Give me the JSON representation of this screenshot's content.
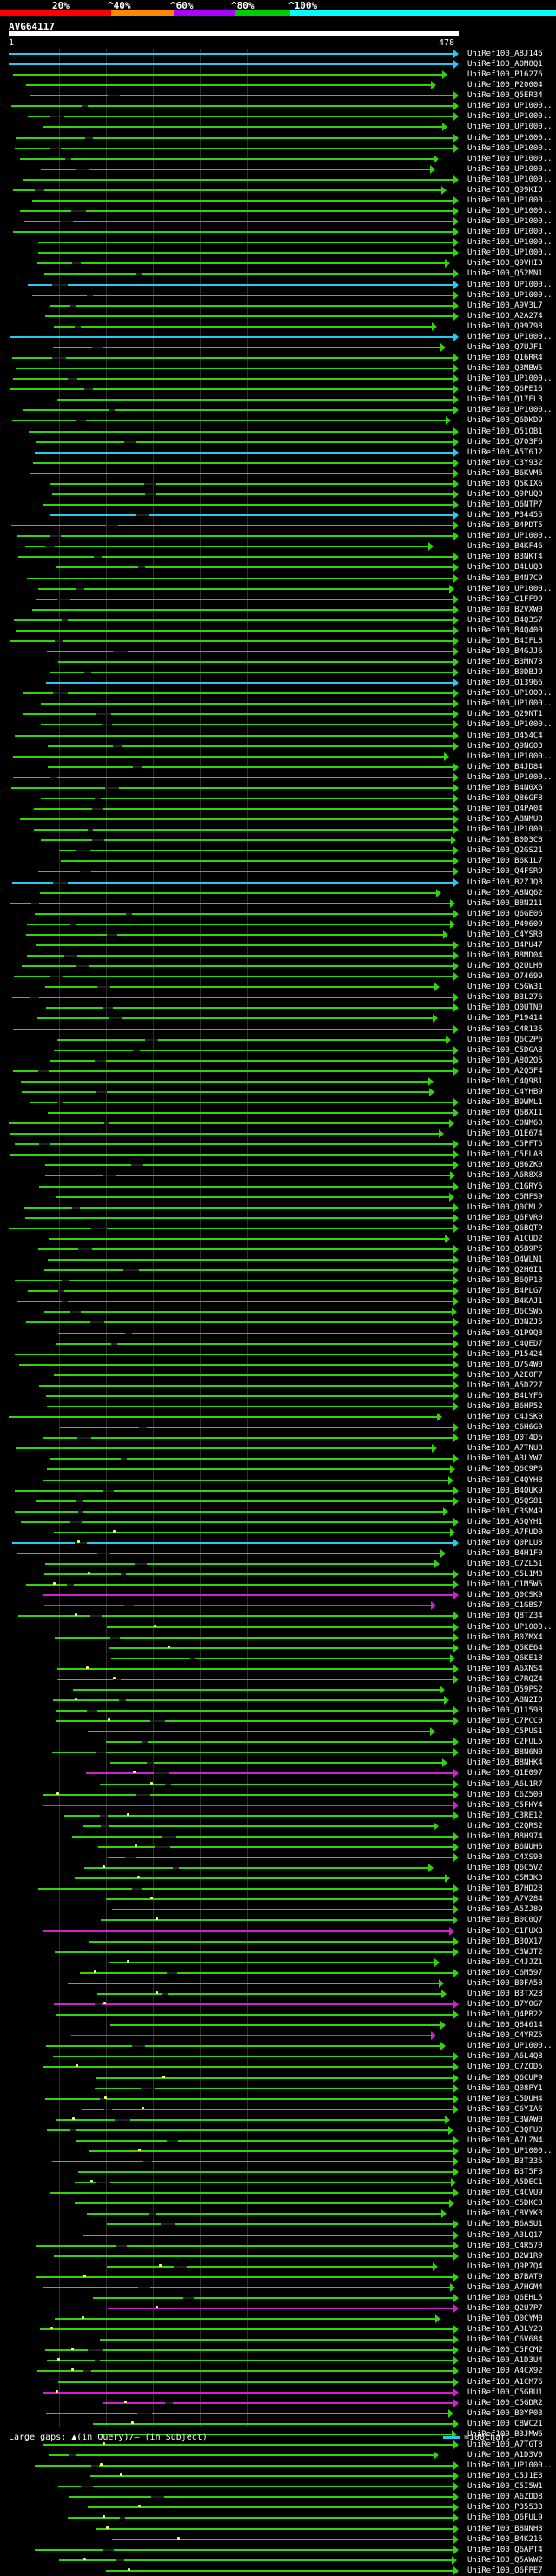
{
  "scale": {
    "labels": [
      "20%",
      "^40%",
      "^60%",
      "^80%",
      "^100%"
    ],
    "colors": [
      "#ff0000",
      "#ff8800",
      "#aa00ff",
      "#00cc00",
      "#00ffff"
    ]
  },
  "query": {
    "name": "AVG64117",
    "start": "1",
    "end": "478"
  },
  "colors": {
    "green": "#2fd40a",
    "cyan": "#28c8f0",
    "magenta": "#d020d0"
  },
  "hits": [
    {
      "label": "UniRef100_A8J146",
      "color": "cyan"
    },
    {
      "label": "UniRef100_A0M8Q1",
      "color": "cyan"
    },
    {
      "label": "UniRef100_P16276",
      "color": "green"
    },
    {
      "label": "UniRef100_P20004",
      "color": "green"
    },
    {
      "label": "UniRef100_Q5ER34",
      "color": "green"
    },
    {
      "label": "UniRef100_UP1000..",
      "color": "green"
    },
    {
      "label": "UniRef100_UP1000..",
      "color": "green"
    },
    {
      "label": "UniRef100_UP1000..",
      "color": "green"
    },
    {
      "label": "UniRef100_UP1000..",
      "color": "green"
    },
    {
      "label": "UniRef100_UP1000..",
      "color": "green"
    },
    {
      "label": "UniRef100_UP1000..",
      "color": "green"
    },
    {
      "label": "UniRef100_UP1000..",
      "color": "green"
    },
    {
      "label": "UniRef100_UP1000..",
      "color": "green"
    },
    {
      "label": "UniRef100_Q99KI0",
      "color": "green"
    },
    {
      "label": "UniRef100_UP1000..",
      "color": "green"
    },
    {
      "label": "UniRef100_UP1000..",
      "color": "green"
    },
    {
      "label": "UniRef100_UP1000..",
      "color": "green"
    },
    {
      "label": "UniRef100_UP1000..",
      "color": "green"
    },
    {
      "label": "UniRef100_UP1000..",
      "color": "green"
    },
    {
      "label": "UniRef100_UP1000..",
      "color": "green"
    },
    {
      "label": "UniRef100_Q9VHI3",
      "color": "green"
    },
    {
      "label": "UniRef100_Q52MN1",
      "color": "green"
    },
    {
      "label": "UniRef100_UP1000..",
      "color": "cyan"
    },
    {
      "label": "UniRef100_UP1000..",
      "color": "green"
    },
    {
      "label": "UniRef100_A9V3L7",
      "color": "green"
    },
    {
      "label": "UniRef100_A2A274",
      "color": "green"
    },
    {
      "label": "UniRef100_Q99798",
      "color": "green"
    },
    {
      "label": "UniRef100_UP1000..",
      "color": "cyan"
    },
    {
      "label": "UniRef100_Q7UJF1",
      "color": "green"
    },
    {
      "label": "UniRef100_Q16RR4",
      "color": "green"
    },
    {
      "label": "UniRef100_Q3MBW5",
      "color": "green"
    },
    {
      "label": "UniRef100_UP1000..",
      "color": "green"
    },
    {
      "label": "UniRef100_Q6PE16",
      "color": "green"
    },
    {
      "label": "UniRef100_Q17EL3",
      "color": "green"
    },
    {
      "label": "UniRef100_UP1000..",
      "color": "green"
    },
    {
      "label": "UniRef100_Q6DKD9",
      "color": "green"
    },
    {
      "label": "UniRef100_Q51QB1",
      "color": "green"
    },
    {
      "label": "UniRef100_Q703F6",
      "color": "green"
    },
    {
      "label": "UniRef100_A5T6J2",
      "color": "cyan"
    },
    {
      "label": "UniRef100_C3Y932",
      "color": "green"
    },
    {
      "label": "UniRef100_B6KVM6",
      "color": "green"
    },
    {
      "label": "UniRef100_Q5KIX6",
      "color": "green"
    },
    {
      "label": "UniRef100_Q9PUQ0",
      "color": "green"
    },
    {
      "label": "UniRef100_Q6NTP7",
      "color": "green"
    },
    {
      "label": "UniRef100_P34455",
      "color": "cyan"
    },
    {
      "label": "UniRef100_B4PDT5",
      "color": "green"
    },
    {
      "label": "UniRef100_UP1000..",
      "color": "green"
    },
    {
      "label": "UniRef100_B4KF46",
      "color": "green"
    },
    {
      "label": "UniRef100_B3NKT4",
      "color": "green"
    },
    {
      "label": "UniRef100_B4LUQ3",
      "color": "green"
    },
    {
      "label": "UniRef100_B4N7C9",
      "color": "green"
    },
    {
      "label": "UniRef100_UP1000..",
      "color": "green"
    },
    {
      "label": "UniRef100_C1FF99",
      "color": "green"
    },
    {
      "label": "UniRef100_B2VXW0",
      "color": "green"
    },
    {
      "label": "UniRef100_B4Q3S7",
      "color": "green"
    },
    {
      "label": "UniRef100_B4Q400",
      "color": "green"
    },
    {
      "label": "UniRef100_B4IFL8",
      "color": "green"
    },
    {
      "label": "UniRef100_B4GJJ6",
      "color": "green"
    },
    {
      "label": "UniRef100_B3MN73",
      "color": "green"
    },
    {
      "label": "UniRef100_B0DBJ9",
      "color": "green"
    },
    {
      "label": "UniRef100_Q13966",
      "color": "cyan"
    },
    {
      "label": "UniRef100_UP1000..",
      "color": "green"
    },
    {
      "label": "UniRef100_UP1000..",
      "color": "green"
    },
    {
      "label": "UniRef100_Q29NT1",
      "color": "green"
    },
    {
      "label": "UniRef100_UP1000..",
      "color": "green"
    },
    {
      "label": "UniRef100_Q454C4",
      "color": "green"
    },
    {
      "label": "UniRef100_Q9NG03",
      "color": "green"
    },
    {
      "label": "UniRef100_UP1000..",
      "color": "green"
    },
    {
      "label": "UniRef100_B4JD84",
      "color": "green"
    },
    {
      "label": "UniRef100_UP1000..",
      "color": "green"
    },
    {
      "label": "UniRef100_B4N0X6",
      "color": "green"
    },
    {
      "label": "UniRef100_Q86GF8",
      "color": "green"
    },
    {
      "label": "UniRef100_Q4PA04",
      "color": "green"
    },
    {
      "label": "UniRef100_A8NMU8",
      "color": "green"
    },
    {
      "label": "UniRef100_UP1000..",
      "color": "green"
    },
    {
      "label": "UniRef100_B0D3C8",
      "color": "green"
    },
    {
      "label": "UniRef100_Q2GS21",
      "color": "green"
    },
    {
      "label": "UniRef100_B6K1L7",
      "color": "green"
    },
    {
      "label": "UniRef100_Q4FSR9",
      "color": "green"
    },
    {
      "label": "UniRef100_B2ZJQ3",
      "color": "cyan"
    },
    {
      "label": "UniRef100_A8NQ62",
      "color": "green"
    },
    {
      "label": "UniRef100_B8N211",
      "color": "green"
    },
    {
      "label": "UniRef100_Q6GE06",
      "color": "green"
    },
    {
      "label": "UniRef100_P49609",
      "color": "green"
    },
    {
      "label": "UniRef100_C4YSR8",
      "color": "green"
    },
    {
      "label": "UniRef100_B4PU47",
      "color": "green"
    },
    {
      "label": "UniRef100_B8MD04",
      "color": "green"
    },
    {
      "label": "UniRef100_Q2ULH0",
      "color": "green"
    },
    {
      "label": "UniRef100_O74699",
      "color": "green"
    },
    {
      "label": "UniRef100_C5GW31",
      "color": "green"
    },
    {
      "label": "UniRef100_B3L276",
      "color": "green"
    },
    {
      "label": "UniRef100_Q0UTN0",
      "color": "green"
    },
    {
      "label": "UniRef100_P19414",
      "color": "green"
    },
    {
      "label": "UniRef100_C4R135",
      "color": "green"
    },
    {
      "label": "UniRef100_Q6C2P6",
      "color": "green"
    },
    {
      "label": "UniRef100_C5DGA3",
      "color": "green"
    },
    {
      "label": "UniRef100_A8Q2Q5",
      "color": "green"
    },
    {
      "label": "UniRef100_A2Q5F4",
      "color": "green"
    },
    {
      "label": "UniRef100_C4Q981",
      "color": "green"
    },
    {
      "label": "UniRef100_C4YHB9",
      "color": "green"
    },
    {
      "label": "UniRef100_B9WML1",
      "color": "green"
    },
    {
      "label": "UniRef100_Q6BXI1",
      "color": "green"
    },
    {
      "label": "UniRef100_C0NM60",
      "color": "green"
    },
    {
      "label": "UniRef100_Q1E674",
      "color": "green"
    },
    {
      "label": "UniRef100_C5PFT5",
      "color": "green"
    },
    {
      "label": "UniRef100_C5FLA8",
      "color": "green"
    },
    {
      "label": "UniRef100_Q86ZK0",
      "color": "green"
    },
    {
      "label": "UniRef100_A6R8X8",
      "color": "green"
    },
    {
      "label": "UniRef100_C1GRY5",
      "color": "green"
    },
    {
      "label": "UniRef100_C5MFS9",
      "color": "green"
    },
    {
      "label": "UniRef100_Q0CML2",
      "color": "green"
    },
    {
      "label": "UniRef100_Q6FVR0",
      "color": "green"
    },
    {
      "label": "UniRef100_Q6BQT9",
      "color": "green"
    },
    {
      "label": "UniRef100_A1CUD2",
      "color": "green"
    },
    {
      "label": "UniRef100_Q5B9P5",
      "color": "green"
    },
    {
      "label": "UniRef100_Q4WLN1",
      "color": "green"
    },
    {
      "label": "UniRef100_Q2H0I1",
      "color": "green"
    },
    {
      "label": "UniRef100_B6QP13",
      "color": "green"
    },
    {
      "label": "UniRef100_B4PLG7",
      "color": "green"
    },
    {
      "label": "UniRef100_B4KAJ1",
      "color": "green"
    },
    {
      "label": "UniRef100_Q6CSW5",
      "color": "green"
    },
    {
      "label": "UniRef100_B3NZJ5",
      "color": "green"
    },
    {
      "label": "UniRef100_Q1P9Q3",
      "color": "green"
    },
    {
      "label": "UniRef100_C4QED7",
      "color": "green"
    },
    {
      "label": "UniRef100_P15424",
      "color": "green"
    },
    {
      "label": "UniRef100_Q7S4W0",
      "color": "green"
    },
    {
      "label": "UniRef100_A2E0F7",
      "color": "green"
    },
    {
      "label": "UniRef100_A5DZ27",
      "color": "green"
    },
    {
      "label": "UniRef100_B4LYF6",
      "color": "green"
    },
    {
      "label": "UniRef100_B6HP52",
      "color": "green"
    },
    {
      "label": "UniRef100_C4JSK0",
      "color": "green"
    },
    {
      "label": "UniRef100_C6H6G0",
      "color": "green"
    },
    {
      "label": "UniRef100_Q0T4D6",
      "color": "green"
    },
    {
      "label": "UniRef100_A7TNU8",
      "color": "green"
    },
    {
      "label": "UniRef100_A3LYW7",
      "color": "green"
    },
    {
      "label": "UniRef100_Q6C9P6",
      "color": "green"
    },
    {
      "label": "UniRef100_C4QYH8",
      "color": "green"
    },
    {
      "label": "UniRef100_B4QUK9",
      "color": "green"
    },
    {
      "label": "UniRef100_Q5QS81",
      "color": "green"
    },
    {
      "label": "UniRef100_C3SM49",
      "color": "green"
    },
    {
      "label": "UniRef100_A5QYH1",
      "color": "green"
    },
    {
      "label": "UniRef100_A7FUD0",
      "color": "green"
    },
    {
      "label": "UniRef100_Q0PLU3",
      "color": "cyan"
    },
    {
      "label": "UniRef100_B4H1F0",
      "color": "green"
    },
    {
      "label": "UniRef100_C7ZL51",
      "color": "green"
    },
    {
      "label": "UniRef100_C5L1M3",
      "color": "green"
    },
    {
      "label": "UniRef100_C1M5W5",
      "color": "green"
    },
    {
      "label": "UniRef100_Q0CSK9",
      "color": "magenta"
    },
    {
      "label": "UniRef100_C1GBS7",
      "color": "magenta"
    },
    {
      "label": "UniRef100_Q8TZ34",
      "color": "green"
    },
    {
      "label": "UniRef100_UP1000..",
      "color": "green"
    },
    {
      "label": "UniRef100_B0ZMX4",
      "color": "green"
    },
    {
      "label": "UniRef100_Q5KE64",
      "color": "green"
    },
    {
      "label": "UniRef100_Q6KE18",
      "color": "green"
    },
    {
      "label": "UniRef100_A6XNS4",
      "color": "green"
    },
    {
      "label": "UniRef100_C7RQZ4",
      "color": "green"
    },
    {
      "label": "UniRef100_Q59PS2",
      "color": "green"
    },
    {
      "label": "UniRef100_A8N2I0",
      "color": "green"
    },
    {
      "label": "UniRef100_Q11598",
      "color": "green"
    },
    {
      "label": "UniRef100_C7PCC0",
      "color": "green"
    },
    {
      "label": "UniRef100_C5PUS1",
      "color": "green"
    },
    {
      "label": "UniRef100_C2FUL5",
      "color": "green"
    },
    {
      "label": "UniRef100_B8N6N0",
      "color": "green"
    },
    {
      "label": "UniRef100_B8NHK4",
      "color": "green"
    },
    {
      "label": "UniRef100_Q1E097",
      "color": "magenta"
    },
    {
      "label": "UniRef100_A6L1R7",
      "color": "green"
    },
    {
      "label": "UniRef100_C6Z500",
      "color": "green"
    },
    {
      "label": "UniRef100_C5FHY4",
      "color": "magenta"
    },
    {
      "label": "UniRef100_C3RE12",
      "color": "green"
    },
    {
      "label": "UniRef100_C2QRS2",
      "color": "green"
    },
    {
      "label": "UniRef100_B8H974",
      "color": "green"
    },
    {
      "label": "UniRef100_B6NUH6",
      "color": "green"
    },
    {
      "label": "UniRef100_C4XS93",
      "color": "green"
    },
    {
      "label": "UniRef100_Q6C5V2",
      "color": "green"
    },
    {
      "label": "UniRef100_C5M3K3",
      "color": "green"
    },
    {
      "label": "UniRef100_B7HD28",
      "color": "green"
    },
    {
      "label": "UniRef100_A7V284",
      "color": "green"
    },
    {
      "label": "UniRef100_A5ZJ89",
      "color": "green"
    },
    {
      "label": "UniRef100_B0C0Q7",
      "color": "green"
    },
    {
      "label": "UniRef100_C1FUX3",
      "color": "magenta"
    },
    {
      "label": "UniRef100_B3QX17",
      "color": "green"
    },
    {
      "label": "UniRef100_C3WJT2",
      "color": "green"
    },
    {
      "label": "UniRef100_C4JJZ1",
      "color": "green"
    },
    {
      "label": "UniRef100_C6M597",
      "color": "green"
    },
    {
      "label": "UniRef100_B0FA58",
      "color": "green"
    },
    {
      "label": "UniRef100_B3TX28",
      "color": "green"
    },
    {
      "label": "UniRef100_B7Y0G7",
      "color": "magenta"
    },
    {
      "label": "UniRef100_Q4PB22",
      "color": "green"
    },
    {
      "label": "UniRef100_Q84614",
      "color": "green"
    },
    {
      "label": "UniRef100_C4YRZ5",
      "color": "magenta"
    },
    {
      "label": "UniRef100_UP1000..",
      "color": "green"
    },
    {
      "label": "UniRef100_A6L4Q8",
      "color": "green"
    },
    {
      "label": "UniRef100_C7ZQD5",
      "color": "green"
    },
    {
      "label": "UniRef100_Q6CUP9",
      "color": "green"
    },
    {
      "label": "UniRef100_Q08PY1",
      "color": "green"
    },
    {
      "label": "UniRef100_C5DUH4",
      "color": "green"
    },
    {
      "label": "UniRef100_C6YIA6",
      "color": "green"
    },
    {
      "label": "UniRef100_C3WAW0",
      "color": "green"
    },
    {
      "label": "UniRef100_C3QFU0",
      "color": "green"
    },
    {
      "label": "UniRef100_A7LZN4",
      "color": "green"
    },
    {
      "label": "UniRef100_UP1000..",
      "color": "green"
    },
    {
      "label": "UniRef100_B3T335",
      "color": "green"
    },
    {
      "label": "UniRef100_B3T5F3",
      "color": "green"
    },
    {
      "label": "UniRef100_A5DEC1",
      "color": "green"
    },
    {
      "label": "UniRef100_C4CVU9",
      "color": "green"
    },
    {
      "label": "UniRef100_C5DKC8",
      "color": "green"
    },
    {
      "label": "UniRef100_C8VYK3",
      "color": "green"
    },
    {
      "label": "UniRef100_B6ASU1",
      "color": "green"
    },
    {
      "label": "UniRef100_A3LQ17",
      "color": "green"
    },
    {
      "label": "UniRef100_C4R570",
      "color": "green"
    },
    {
      "label": "UniRef100_B2W1R9",
      "color": "green"
    },
    {
      "label": "UniRef100_Q9P7Q4",
      "color": "green"
    },
    {
      "label": "UniRef100_B7BAT9",
      "color": "green"
    },
    {
      "label": "UniRef100_A7HGM4",
      "color": "green"
    },
    {
      "label": "UniRef100_Q6EHL5",
      "color": "green"
    },
    {
      "label": "UniRef100_Q2U7P7",
      "color": "magenta"
    },
    {
      "label": "UniRef100_Q0CYM0",
      "color": "green"
    },
    {
      "label": "UniRef100_A3LY20",
      "color": "green"
    },
    {
      "label": "UniRef100_C6V684",
      "color": "green"
    },
    {
      "label": "UniRef100_C5FCM2",
      "color": "green"
    },
    {
      "label": "UniRef100_A1D3U4",
      "color": "green"
    },
    {
      "label": "UniRef100_A4CX92",
      "color": "green"
    },
    {
      "label": "UniRef100_A1CM76",
      "color": "green"
    },
    {
      "label": "UniRef100_C5GRU1",
      "color": "magenta"
    },
    {
      "label": "UniRef100_C5GDR2",
      "color": "magenta"
    },
    {
      "label": "UniRef100_B0YP03",
      "color": "green"
    },
    {
      "label": "UniRef100_C8WC21",
      "color": "green"
    },
    {
      "label": "UniRef100_B3JMW6",
      "color": "green"
    },
    {
      "label": "UniRef100_A7TGT8",
      "color": "green"
    },
    {
      "label": "UniRef100_A1D3V0",
      "color": "green"
    },
    {
      "label": "UniRef100_UP1000..",
      "color": "green"
    },
    {
      "label": "UniRef100_C5J1E3",
      "color": "green"
    },
    {
      "label": "UniRef100_C5I5W1",
      "color": "green"
    },
    {
      "label": "UniRef100_A6ZDD8",
      "color": "green"
    },
    {
      "label": "UniRef100_P35533",
      "color": "green"
    },
    {
      "label": "UniRef100_Q6FUL9",
      "color": "green"
    },
    {
      "label": "UniRef100_B8NNH3",
      "color": "green"
    },
    {
      "label": "UniRef100_B4K215",
      "color": "green"
    },
    {
      "label": "UniRef100_Q6APT4",
      "color": "green"
    },
    {
      "label": "UniRef100_Q5AWW2",
      "color": "green"
    },
    {
      "label": "UniRef100_Q6FPE7",
      "color": "green"
    }
  ],
  "footer": {
    "text": "Large gaps: ▲(in Query)/– (in Subject)",
    "legend": "=100char."
  }
}
